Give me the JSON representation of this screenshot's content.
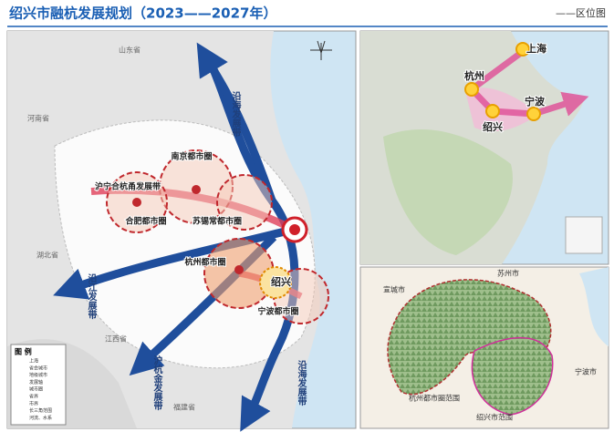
{
  "header": {
    "title": "绍兴市融杭发展规划（2023——2027年）",
    "subtitle": "——区位图"
  },
  "left_map": {
    "provinces": [
      "山东省",
      "河南省",
      "湖北省",
      "江西省",
      "福建省"
    ],
    "corridors": [
      "沿海发展带",
      "沿江发展带",
      "沪杭金发展带",
      "沿海发展带"
    ],
    "metro_circles": [
      "南京都市圈",
      "沪宁合杭甬发展带",
      "合肥都市圈",
      "苏锡常都市圈",
      "杭州都市圈",
      "绍兴",
      "宁波都市圈"
    ],
    "legend": {
      "title": "图  例",
      "items": [
        "上海",
        "省会城市",
        "地级城市",
        "发展轴",
        "城市圈",
        "省界",
        "市界",
        "长三角范围",
        "河流、水系"
      ]
    }
  },
  "top_right_map": {
    "cities": [
      "上海",
      "杭州",
      "宁波",
      "绍兴"
    ]
  },
  "bottom_right_map": {
    "labels": [
      "宣城市",
      "苏州市",
      "宁波市",
      "杭州都市圈范围",
      "绍兴市范围"
    ]
  }
}
